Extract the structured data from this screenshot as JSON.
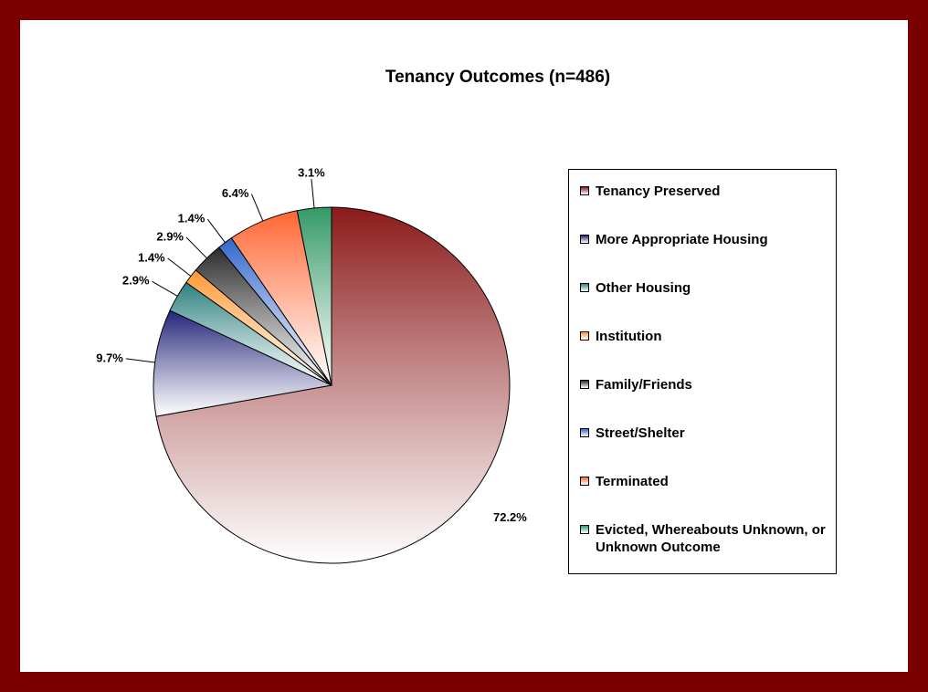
{
  "chart_data": {
    "type": "pie",
    "title": "Tenancy Outcomes (n=486)",
    "categories": [
      "Tenancy Preserved",
      "More Appropriate Housing",
      "Other Housing",
      "Institution",
      "Family/Friends",
      "Street/Shelter",
      "Terminated",
      "Evicted, Whereabouts Unknown, or Unknown Outcome"
    ],
    "values": [
      72.2,
      9.7,
      2.9,
      1.4,
      2.9,
      1.4,
      6.4,
      3.1
    ],
    "value_labels": [
      "72.2%",
      "9.7%",
      "2.9%",
      "1.4%",
      "2.9%",
      "1.4%",
      "6.4%",
      "3.1%"
    ],
    "colors": [
      "#8b1a1a",
      "#23237a",
      "#2e8080",
      "#ff9933",
      "#2b2b2b",
      "#3366cc",
      "#ff6633",
      "#339966"
    ],
    "legend": "right"
  }
}
